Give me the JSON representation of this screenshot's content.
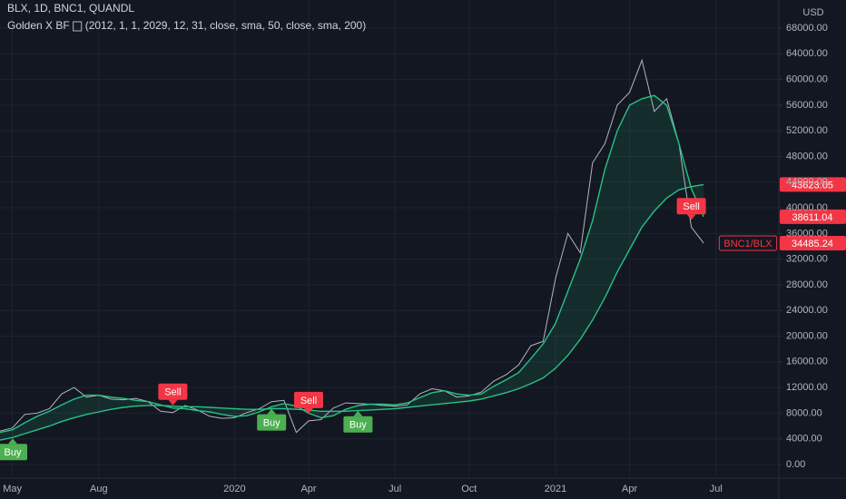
{
  "chart_data": {
    "type": "line",
    "title": "BLX, 1D, BNC1, QUANDL",
    "subtitle": "Golden X BF",
    "subtitle_params": "(2012, 1, 1, 2029, 12, 31, close, sma, 50, close, sma, 200)",
    "y_label": "USD",
    "categories": [
      null,
      "May",
      null,
      null,
      null,
      null,
      null,
      null,
      "Aug",
      null,
      null,
      null,
      null,
      null,
      null,
      null,
      null,
      null,
      null,
      "2020",
      null,
      null,
      null,
      null,
      null,
      "Apr",
      null,
      null,
      null,
      null,
      null,
      null,
      "Jul",
      null,
      null,
      null,
      null,
      null,
      "Oct",
      null,
      null,
      null,
      null,
      null,
      null,
      "2021",
      null,
      null,
      null,
      null,
      null,
      "Apr",
      null,
      null,
      null,
      null,
      null,
      null,
      "Jul",
      null,
      null,
      null,
      null
    ],
    "series": [
      {
        "name": "BNC1/BLX",
        "color": "#b2b5be",
        "tag_color": "#f23645",
        "values": [
          5200,
          5700,
          7800,
          8000,
          8700,
          11000,
          12000,
          10500,
          10800,
          10200,
          10100,
          10300,
          9800,
          8300,
          8100,
          9200,
          8500,
          7500,
          7200,
          7300,
          8100,
          8700,
          9800,
          10000,
          5000,
          6800,
          7000,
          8800,
          9600,
          9500,
          9400,
          9200,
          9100,
          9300,
          11000,
          11800,
          11500,
          10500,
          10700,
          11300,
          13000,
          14000,
          15500,
          18500,
          19200,
          29000,
          36000,
          33000,
          47000,
          50000,
          56000,
          58000,
          63000,
          55000,
          57000,
          50000,
          37000,
          34485.24,
          null,
          null,
          null,
          null,
          null
        ]
      },
      {
        "color": "#26c281",
        "tag_color": "#f23645",
        "values": [
          5000,
          5400,
          6500,
          7500,
          8300,
          9300,
          10200,
          10800,
          10800,
          10500,
          10300,
          10000,
          9800,
          9300,
          8800,
          8700,
          8400,
          8200,
          7800,
          7500,
          7600,
          8200,
          9000,
          9500,
          9100,
          8000,
          7300,
          7600,
          8600,
          9200,
          9400,
          9400,
          9300,
          9600,
          10400,
          11200,
          11500,
          11000,
          10800,
          11000,
          12200,
          13200,
          14300,
          16500,
          18800,
          22000,
          27000,
          32000,
          38000,
          46000,
          52000,
          56000,
          57000,
          57500,
          56000,
          50000,
          43000,
          38611.04,
          null,
          null,
          null,
          null,
          null
        ]
      },
      {
        "color": "#26c281",
        "tag_color": "#f23645",
        "values": [
          3800,
          4200,
          4800,
          5400,
          6000,
          6700,
          7300,
          7800,
          8200,
          8600,
          8900,
          9100,
          9200,
          9200,
          9100,
          9000,
          9000,
          8900,
          8800,
          8700,
          8600,
          8600,
          8700,
          8700,
          8600,
          8500,
          8300,
          8300,
          8300,
          8400,
          8500,
          8600,
          8700,
          8900,
          9100,
          9300,
          9500,
          9700,
          9900,
          10200,
          10700,
          11200,
          11800,
          12600,
          13500,
          15000,
          17000,
          19500,
          22500,
          26000,
          30000,
          33500,
          37000,
          39500,
          41500,
          42800,
          43300,
          43623.05,
          null,
          null,
          null,
          null,
          null
        ]
      }
    ],
    "fill_color": "#26c281",
    "annotations": [
      {
        "text": "Buy",
        "point": 0,
        "side": "below",
        "color": "#4caf50"
      },
      {
        "text": "Sell",
        "point": 14,
        "side": "above",
        "color": "#f23645"
      },
      {
        "text": "Buy",
        "point": 22,
        "side": "below",
        "color": "#4caf50"
      },
      {
        "text": "Sell",
        "point": 25,
        "side": "above",
        "color": "#f23645"
      },
      {
        "text": "Buy",
        "point": 29,
        "side": "below",
        "color": "#4caf50"
      },
      {
        "text": "Sell",
        "point": 56,
        "side": "above",
        "color": "#f23645"
      }
    ],
    "ylim": [
      -2120,
      72380
    ],
    "yticks": [
      {
        "value": 0,
        "label": "0.00"
      },
      {
        "value": 4000,
        "label": "4000.00"
      },
      {
        "value": 8000,
        "label": "8000.00"
      },
      {
        "value": 12000,
        "label": "12000.00"
      },
      {
        "value": 16000,
        "label": "16000.00"
      },
      {
        "value": 20000,
        "label": "20000.00"
      },
      {
        "value": 24000,
        "label": "24000.00"
      },
      {
        "value": 28000,
        "label": "28000.00"
      },
      {
        "value": 32000,
        "label": "32000.00"
      },
      {
        "value": 36000,
        "label": "36000.00"
      },
      {
        "value": 40000,
        "label": "40000.00"
      },
      {
        "value": 44000,
        "label": "44000.00"
      },
      {
        "value": 48000,
        "label": "48000.00"
      },
      {
        "value": 52000,
        "label": "52000.00"
      },
      {
        "value": 56000,
        "label": "56000.00"
      },
      {
        "value": 60000,
        "label": "60000.00"
      },
      {
        "value": 64000,
        "label": "64000.00"
      },
      {
        "value": 68000,
        "label": "68000.00"
      }
    ],
    "grid": true
  }
}
